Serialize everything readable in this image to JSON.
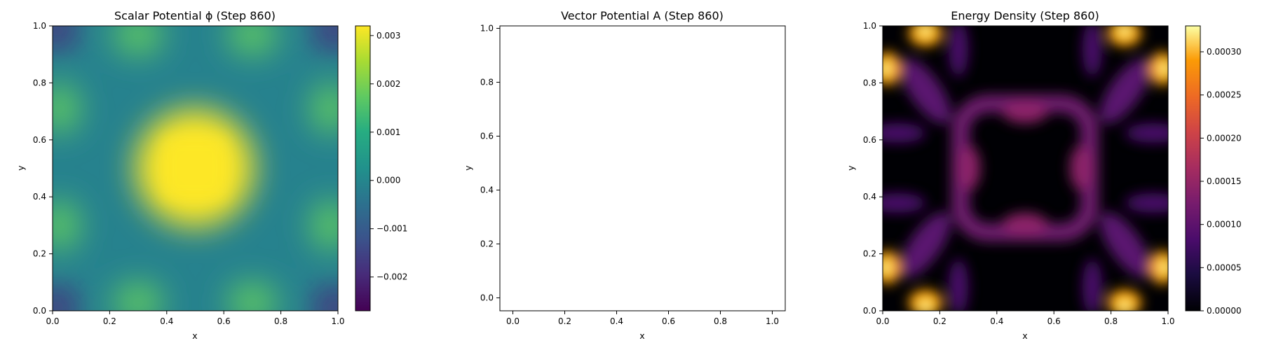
{
  "chart_data": [
    {
      "type": "heatmap",
      "title": "Scalar Potential ϕ (Step 860)",
      "xlabel": "x",
      "ylabel": "y",
      "xlim": [
        0.0,
        1.0
      ],
      "ylim": [
        0.0,
        1.0
      ],
      "xticks": [
        "0.0",
        "0.2",
        "0.4",
        "0.6",
        "0.8",
        "1.0"
      ],
      "yticks": [
        "0.0",
        "0.2",
        "0.4",
        "0.6",
        "0.8",
        "1.0"
      ],
      "colormap": "viridis",
      "colorbar": {
        "range": [
          -0.0027,
          0.0032
        ],
        "ticks": [
          {
            "value": -0.002,
            "label": "−0.002"
          },
          {
            "value": -0.001,
            "label": "−0.001"
          },
          {
            "value": 0.0,
            "label": "0.000"
          },
          {
            "value": 0.001,
            "label": "0.001"
          },
          {
            "value": 0.002,
            "label": "0.002"
          },
          {
            "value": 0.003,
            "label": "0.003"
          }
        ]
      },
      "field": "central square peak ≈0.0032 at (0.5,0.5); green lobes near edges at 0.3/0.7; dark minima ≈−0.0027 in corners"
    },
    {
      "type": "scatter",
      "title": "Vector Potential A (Step 860)",
      "xlabel": "x",
      "ylabel": "y",
      "xlim": [
        -0.05,
        1.05
      ],
      "ylim": [
        -0.05,
        1.05
      ],
      "xticks": [
        "0.0",
        "0.2",
        "0.4",
        "0.6",
        "0.8",
        "1.0"
      ],
      "yticks": [
        "0.0",
        "0.2",
        "0.4",
        "0.6",
        "0.8",
        "1.0"
      ],
      "series": []
    },
    {
      "type": "heatmap",
      "title": "Energy Density (Step 860)",
      "xlabel": "x",
      "ylabel": "y",
      "xlim": [
        0.0,
        1.0
      ],
      "ylim": [
        0.0,
        1.0
      ],
      "xticks": [
        "0.0",
        "0.2",
        "0.4",
        "0.6",
        "0.8",
        "1.0"
      ],
      "yticks": [
        "0.0",
        "0.2",
        "0.4",
        "0.6",
        "0.8",
        "1.0"
      ],
      "colormap": "inferno",
      "colorbar": {
        "range": [
          0.0,
          0.00033
        ],
        "ticks": [
          {
            "value": 0.0,
            "label": "0.00000"
          },
          {
            "value": 5e-05,
            "label": "0.00005"
          },
          {
            "value": 0.0001,
            "label": "0.00010"
          },
          {
            "value": 0.00015,
            "label": "0.00015"
          },
          {
            "value": 0.0002,
            "label": "0.00020"
          },
          {
            "value": 0.00025,
            "label": "0.00025"
          },
          {
            "value": 0.0003,
            "label": "0.00030"
          }
        ]
      },
      "field": "bright maxima ≈0.00033 near corners at (0.15,1.0),(0.85,1.0),(0,0.85),(1,0.85) and mirrored; magenta ring around center; dark center"
    }
  ]
}
